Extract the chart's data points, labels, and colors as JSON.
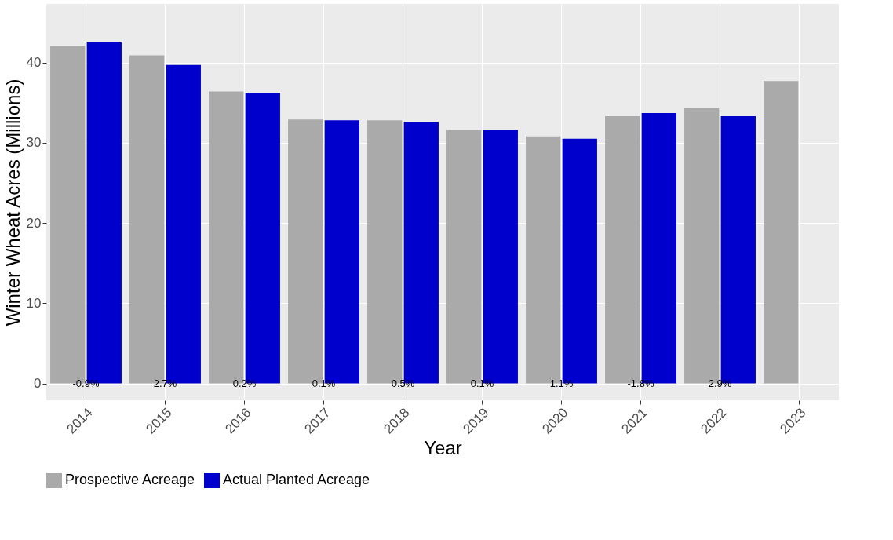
{
  "chart_data": {
    "type": "bar",
    "xlabel": "Year",
    "ylabel": "Winter Wheat Acres (Millions)",
    "categories": [
      "2014",
      "2015",
      "2016",
      "2017",
      "2018",
      "2019",
      "2020",
      "2021",
      "2022",
      "2023"
    ],
    "series": [
      {
        "name": "Prospective Acreage",
        "color": "#aaaaaa",
        "values": [
          42.1,
          40.9,
          36.4,
          32.9,
          32.8,
          31.6,
          30.8,
          33.3,
          34.3,
          37.7
        ]
      },
      {
        "name": "Actual Planted Acreage",
        "color": "#0000cd",
        "values": [
          42.5,
          39.7,
          36.2,
          32.8,
          32.6,
          31.6,
          30.5,
          33.7,
          33.3,
          null
        ]
      }
    ],
    "ylim": [
      -2.1,
      47.3
    ],
    "yticks": [
      0,
      10,
      20,
      30,
      40
    ],
    "grid": true,
    "legend": "bottom",
    "annotations": [
      {
        "text": "-0.9%",
        "x": "2014",
        "y": 0
      },
      {
        "text": "2.7%",
        "x": "2015",
        "y": 0
      },
      {
        "text": "0.2%",
        "x": "2016",
        "y": 0
      },
      {
        "text": "0.1%",
        "x": "2017",
        "y": 0
      },
      {
        "text": "0.5%",
        "x": "2018",
        "y": 0
      },
      {
        "text": "0.1%",
        "x": "2019",
        "y": 0
      },
      {
        "text": "1.1%",
        "x": "2020",
        "y": 0
      },
      {
        "text": "-1.8%",
        "x": "2021",
        "y": 0
      },
      {
        "text": "2.9%",
        "x": "2022",
        "y": 0
      }
    ]
  }
}
